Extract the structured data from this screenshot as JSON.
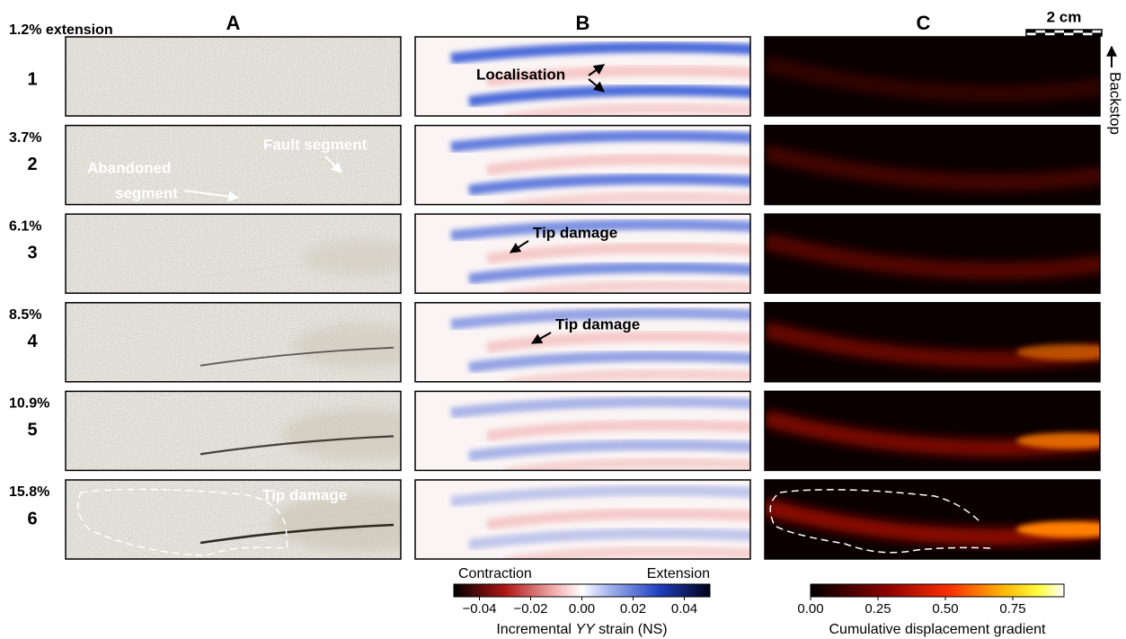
{
  "figure": {
    "column_headers": [
      "A",
      "B",
      "C"
    ],
    "scale_bar": "2 cm",
    "backstop_label": "Backstop",
    "rows": [
      {
        "label": "1",
        "extension": "1.2% extension"
      },
      {
        "label": "2",
        "extension": "3.7%"
      },
      {
        "label": "3",
        "extension": "6.1%"
      },
      {
        "label": "4",
        "extension": "8.5%"
      },
      {
        "label": "5",
        "extension": "10.9%"
      },
      {
        "label": "6",
        "extension": "15.8%"
      }
    ],
    "annotations": [
      "Localisation",
      "Fault segment",
      "Abandoned",
      "segment",
      "Tip damage",
      "Tip damage",
      "Tip damage"
    ],
    "colorbars": [
      {
        "left_label": "Contraction",
        "right_label": "Extension",
        "label_parts": [
          "Incremental ",
          "YY",
          " strain (NS)"
        ],
        "lim": [
          -0.05,
          0.05
        ],
        "ticks": [
          {
            "value": -0.04,
            "label": "−0.04"
          },
          {
            "value": -0.02,
            "label": "−0.02"
          },
          {
            "value": 0,
            "label": "0.00"
          },
          0.02,
          0.04
        ]
      },
      {
        "label_parts": [
          "Cumulative displacement gradient"
        ],
        "lim": [
          0,
          0.94
        ],
        "ticks": [
          {
            "value": 0,
            "label": "0.00"
          },
          0.25,
          {
            "value": 0.5,
            "label": "0.50"
          },
          0.75
        ]
      }
    ]
  }
}
